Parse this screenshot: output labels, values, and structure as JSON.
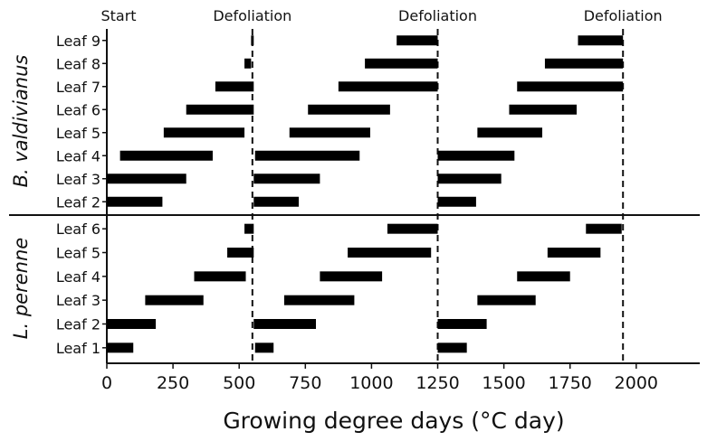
{
  "chart_data": {
    "type": "gantt",
    "title": "",
    "xlabel": "Growing degree days (°C day)",
    "ylabel": "",
    "xlim": [
      0,
      2240
    ],
    "x_ticks": [
      0,
      250,
      500,
      750,
      1000,
      1250,
      1500,
      1750,
      2000
    ],
    "x_tick_labels": [
      "0",
      "250",
      "500",
      "750",
      "1000",
      "1250",
      "1500",
      "1750",
      "2000"
    ],
    "events": [
      {
        "label": "Start",
        "x": 0,
        "dashed": false
      },
      {
        "label": "Defoliation",
        "x": 550,
        "dashed": true
      },
      {
        "label": "Defoliation",
        "x": 1250,
        "dashed": true
      },
      {
        "label": "Defoliation",
        "x": 1950,
        "dashed": true
      }
    ],
    "panels": [
      {
        "species": "B. valdivianus",
        "leaves": [
          {
            "label": "Leaf 9",
            "segments": [
              [
                545,
                555
              ],
              [
                1095,
                1250
              ],
              [
                1780,
                1950
              ]
            ]
          },
          {
            "label": "Leaf 8",
            "segments": [
              [
                520,
                545
              ],
              [
                975,
                1250
              ],
              [
                1655,
                1950
              ]
            ]
          },
          {
            "label": "Leaf 7",
            "segments": [
              [
                410,
                555
              ],
              [
                875,
                1250
              ],
              [
                1550,
                1950
              ]
            ]
          },
          {
            "label": "Leaf 6",
            "segments": [
              [
                300,
                555
              ],
              [
                760,
                1070
              ],
              [
                1520,
                1775
              ]
            ]
          },
          {
            "label": "Leaf 5",
            "segments": [
              [
                215,
                520
              ],
              [
                690,
                995
              ],
              [
                1400,
                1645
              ]
            ]
          },
          {
            "label": "Leaf 4",
            "segments": [
              [
                50,
                400
              ],
              [
                560,
                955
              ],
              [
                1250,
                1540
              ]
            ]
          },
          {
            "label": "Leaf 3",
            "segments": [
              [
                0,
                300
              ],
              [
                555,
                805
              ],
              [
                1250,
                1490
              ]
            ]
          },
          {
            "label": "Leaf 2",
            "segments": [
              [
                0,
                210
              ],
              [
                555,
                725
              ],
              [
                1250,
                1395
              ]
            ]
          }
        ]
      },
      {
        "species": "L. perenne",
        "leaves": [
          {
            "label": "Leaf 6",
            "segments": [
              [
                520,
                555
              ],
              [
                1060,
                1250
              ],
              [
                1810,
                1945
              ]
            ]
          },
          {
            "label": "Leaf 5",
            "segments": [
              [
                455,
                555
              ],
              [
                910,
                1225
              ],
              [
                1665,
                1865
              ]
            ]
          },
          {
            "label": "Leaf 4",
            "segments": [
              [
                330,
                525
              ],
              [
                805,
                1040
              ],
              [
                1550,
                1750
              ]
            ]
          },
          {
            "label": "Leaf 3",
            "segments": [
              [
                145,
                365
              ],
              [
                670,
                935
              ],
              [
                1400,
                1620
              ]
            ]
          },
          {
            "label": "Leaf 2",
            "segments": [
              [
                0,
                185
              ],
              [
                555,
                790
              ],
              [
                1250,
                1435
              ]
            ]
          },
          {
            "label": "Leaf 1",
            "segments": [
              [
                0,
                100
              ],
              [
                560,
                630
              ],
              [
                1250,
                1360
              ]
            ]
          }
        ]
      }
    ]
  }
}
